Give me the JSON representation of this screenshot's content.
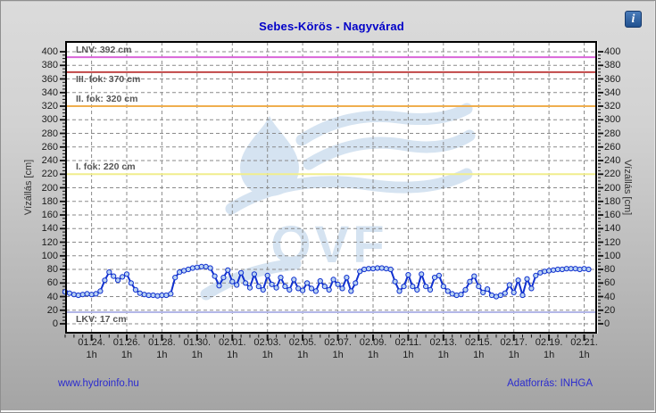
{
  "info_icon": {
    "glyph": "i"
  },
  "footer": {
    "left_link": "www.hydroinfo.hu",
    "right_text": "Adatforrás: INHGA"
  },
  "watermark": {
    "text": "OVF",
    "color": "#d5e3f1"
  },
  "colors": {
    "title": "#0000c8",
    "data_line": "#1030cf",
    "marker_fill": "#b9d2f2",
    "grid": "#8a8a8a",
    "plot_bg": "#ffffff"
  },
  "chart_data": {
    "type": "line",
    "title": "Sebes-Körös - Nagyvárad",
    "ylabel": "Vízállás [cm]",
    "ylim": [
      0,
      400
    ],
    "grid": true,
    "y_axis": {
      "tick_min": 0,
      "tick_max": 400,
      "tick_step": 20,
      "minor_step": 5
    },
    "x_axis": {
      "tick_labels": [
        "01.24.",
        "01.26.",
        "01.28.",
        "01.30.",
        "02.01.",
        "02.03.",
        "02.05.",
        "02.07.",
        "02.09.",
        "02.11.",
        "02.13.",
        "02.15.",
        "02.17.",
        "02.19.",
        "02.21."
      ],
      "sub_label": "1h",
      "tick_positions_days": [
        1.5,
        3.5,
        5.5,
        7.5,
        9.5,
        11.5,
        13.5,
        15.5,
        17.5,
        19.5,
        21.5,
        23.5,
        25.5,
        27.5,
        29.5
      ],
      "minor_tick_step_days": 0.5,
      "domain_days": [
        0,
        30.3
      ]
    },
    "reference_lines": [
      {
        "label": "LNV: 392 cm",
        "value": 392,
        "color": "#d966d9",
        "label_pos": "above"
      },
      {
        "label": "III. fok: 370 cm",
        "value": 370,
        "color": "#c14646",
        "label_pos": "below"
      },
      {
        "label": "II. fok: 320 cm",
        "value": 320,
        "color": "#efae4e",
        "label_pos": "above"
      },
      {
        "label": "I. fok: 220 cm",
        "value": 220,
        "color": "#f1ee8d",
        "label_pos": "above"
      },
      {
        "label": "LKV: 17 cm",
        "value": 17,
        "color": "#b3b7e8",
        "label_pos": "below"
      }
    ],
    "series": [
      {
        "name": "Vízállás (cm)",
        "color": "#1030cf",
        "marker_fill": "#b9d2f2",
        "x_unit": "days from plot left edge (~01.22 12h), 6-hour step",
        "x_start_day": 0,
        "x_step_days": 0.25,
        "values": [
          47,
          45,
          43,
          42,
          43,
          44,
          43,
          44,
          48,
          64,
          76,
          70,
          64,
          69,
          73,
          60,
          50,
          45,
          43,
          42,
          42,
          41,
          42,
          42,
          44,
          68,
          76,
          78,
          80,
          82,
          83,
          84,
          84,
          82,
          70,
          56,
          68,
          79,
          62,
          57,
          75,
          60,
          53,
          73,
          55,
          50,
          71,
          58,
          53,
          68,
          55,
          50,
          65,
          52,
          49,
          60,
          52,
          48,
          63,
          55,
          50,
          65,
          58,
          52,
          68,
          48,
          60,
          77,
          80,
          81,
          81,
          82,
          82,
          81,
          80,
          62,
          48,
          55,
          72,
          55,
          50,
          73,
          55,
          50,
          68,
          71,
          55,
          48,
          44,
          42,
          43,
          50,
          62,
          70,
          55,
          46,
          51,
          42,
          40,
          42,
          45,
          57,
          46,
          64,
          42,
          66,
          52,
          71,
          75,
          77,
          78,
          79,
          80,
          80,
          81,
          81,
          81,
          80,
          81,
          80
        ]
      }
    ]
  }
}
